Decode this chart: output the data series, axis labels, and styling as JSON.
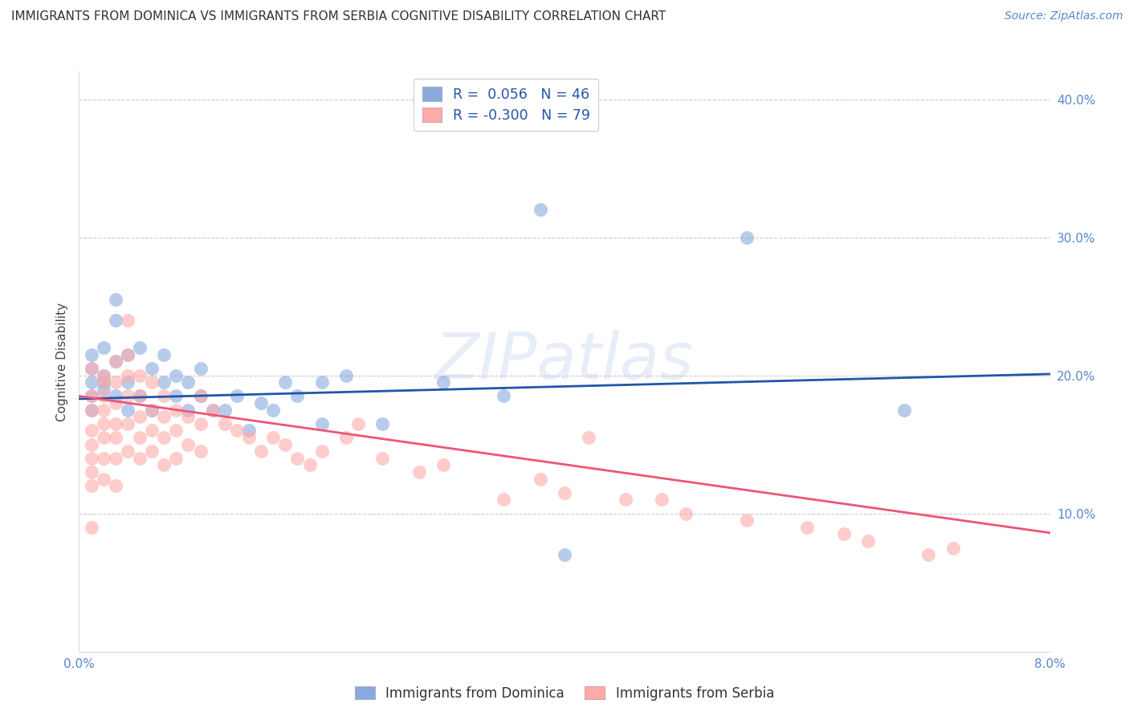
{
  "title": "IMMIGRANTS FROM DOMINICA VS IMMIGRANTS FROM SERBIA COGNITIVE DISABILITY CORRELATION CHART",
  "source": "Source: ZipAtlas.com",
  "ylabel_label": "Cognitive Disability",
  "xlim": [
    0.0,
    0.08
  ],
  "ylim": [
    0.0,
    0.42
  ],
  "grid_color": "#cccccc",
  "bg_color": "#ffffff",
  "blue_color": "#88aadd",
  "pink_color": "#ffaaaa",
  "blue_line_color": "#2255aa",
  "pink_line_color": "#ee5577",
  "legend_blue_label": "Immigrants from Dominica",
  "legend_pink_label": "Immigrants from Serbia",
  "R_blue": 0.056,
  "N_blue": 46,
  "R_pink": -0.3,
  "N_pink": 79,
  "watermark": "ZIPatlas",
  "blue_line_x": [
    0.0,
    0.08
  ],
  "blue_line_y": [
    0.183,
    0.201
  ],
  "pink_line_x": [
    0.0,
    0.08
  ],
  "pink_line_y": [
    0.185,
    0.086
  ],
  "blue_x": [
    0.001,
    0.001,
    0.001,
    0.001,
    0.001,
    0.002,
    0.002,
    0.002,
    0.002,
    0.003,
    0.003,
    0.003,
    0.003,
    0.004,
    0.004,
    0.004,
    0.005,
    0.005,
    0.006,
    0.006,
    0.007,
    0.007,
    0.008,
    0.008,
    0.009,
    0.009,
    0.01,
    0.01,
    0.011,
    0.012,
    0.013,
    0.014,
    0.015,
    0.016,
    0.017,
    0.018,
    0.02,
    0.02,
    0.022,
    0.025,
    0.03,
    0.035,
    0.04,
    0.038,
    0.055,
    0.068
  ],
  "blue_y": [
    0.195,
    0.205,
    0.185,
    0.175,
    0.215,
    0.2,
    0.22,
    0.19,
    0.195,
    0.24,
    0.255,
    0.21,
    0.185,
    0.215,
    0.195,
    0.175,
    0.22,
    0.185,
    0.205,
    0.175,
    0.195,
    0.215,
    0.185,
    0.2,
    0.195,
    0.175,
    0.185,
    0.205,
    0.175,
    0.175,
    0.185,
    0.16,
    0.18,
    0.175,
    0.195,
    0.185,
    0.195,
    0.165,
    0.2,
    0.165,
    0.195,
    0.185,
    0.07,
    0.32,
    0.3,
    0.175
  ],
  "pink_x": [
    0.001,
    0.001,
    0.001,
    0.001,
    0.001,
    0.001,
    0.001,
    0.001,
    0.001,
    0.002,
    0.002,
    0.002,
    0.002,
    0.002,
    0.002,
    0.002,
    0.002,
    0.003,
    0.003,
    0.003,
    0.003,
    0.003,
    0.003,
    0.003,
    0.004,
    0.004,
    0.004,
    0.004,
    0.004,
    0.004,
    0.005,
    0.005,
    0.005,
    0.005,
    0.005,
    0.006,
    0.006,
    0.006,
    0.006,
    0.007,
    0.007,
    0.007,
    0.007,
    0.008,
    0.008,
    0.008,
    0.009,
    0.009,
    0.01,
    0.01,
    0.01,
    0.011,
    0.012,
    0.013,
    0.014,
    0.015,
    0.016,
    0.017,
    0.018,
    0.019,
    0.02,
    0.022,
    0.023,
    0.025,
    0.028,
    0.03,
    0.035,
    0.038,
    0.04,
    0.042,
    0.045,
    0.048,
    0.05,
    0.055,
    0.06,
    0.063,
    0.065,
    0.07,
    0.072
  ],
  "pink_y": [
    0.205,
    0.185,
    0.175,
    0.16,
    0.15,
    0.14,
    0.13,
    0.12,
    0.09,
    0.2,
    0.195,
    0.185,
    0.175,
    0.165,
    0.155,
    0.14,
    0.125,
    0.21,
    0.195,
    0.18,
    0.165,
    0.155,
    0.14,
    0.12,
    0.24,
    0.215,
    0.2,
    0.185,
    0.165,
    0.145,
    0.2,
    0.185,
    0.17,
    0.155,
    0.14,
    0.195,
    0.175,
    0.16,
    0.145,
    0.185,
    0.17,
    0.155,
    0.135,
    0.175,
    0.16,
    0.14,
    0.17,
    0.15,
    0.185,
    0.165,
    0.145,
    0.175,
    0.165,
    0.16,
    0.155,
    0.145,
    0.155,
    0.15,
    0.14,
    0.135,
    0.145,
    0.155,
    0.165,
    0.14,
    0.13,
    0.135,
    0.11,
    0.125,
    0.115,
    0.155,
    0.11,
    0.11,
    0.1,
    0.095,
    0.09,
    0.085,
    0.08,
    0.07,
    0.075
  ]
}
